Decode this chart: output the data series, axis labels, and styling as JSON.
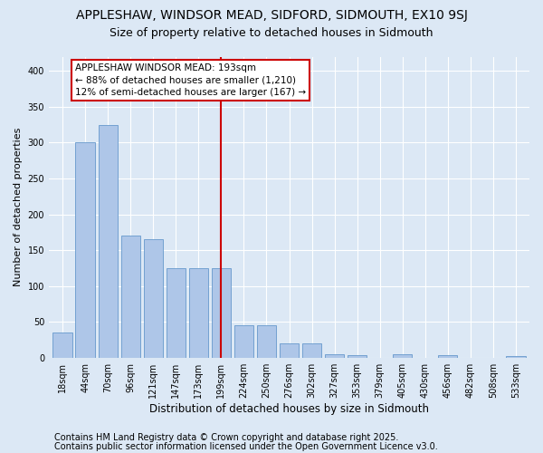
{
  "title_line1": "APPLESHAW, WINDSOR MEAD, SIDFORD, SIDMOUTH, EX10 9SJ",
  "title_line2": "Size of property relative to detached houses in Sidmouth",
  "xlabel": "Distribution of detached houses by size in Sidmouth",
  "ylabel": "Number of detached properties",
  "categories": [
    "18sqm",
    "44sqm",
    "70sqm",
    "96sqm",
    "121sqm",
    "147sqm",
    "173sqm",
    "199sqm",
    "224sqm",
    "250sqm",
    "276sqm",
    "302sqm",
    "327sqm",
    "353sqm",
    "379sqm",
    "405sqm",
    "430sqm",
    "456sqm",
    "482sqm",
    "508sqm",
    "533sqm"
  ],
  "values": [
    35,
    300,
    325,
    170,
    165,
    125,
    125,
    125,
    45,
    45,
    20,
    20,
    5,
    3,
    0,
    5,
    0,
    3,
    0,
    0,
    2
  ],
  "bar_color": "#aec6e8",
  "bar_edge_color": "#6699cc",
  "vline_x_index": 7,
  "vline_color": "#cc0000",
  "annotation_text": "APPLESHAW WINDSOR MEAD: 193sqm\n← 88% of detached houses are smaller (1,210)\n12% of semi-detached houses are larger (167) →",
  "annotation_box_color": "#ffffff",
  "annotation_box_edge": "#cc0000",
  "ylim": [
    0,
    420
  ],
  "yticks": [
    0,
    50,
    100,
    150,
    200,
    250,
    300,
    350,
    400
  ],
  "background_color": "#dce8f5",
  "footer_line1": "Contains HM Land Registry data © Crown copyright and database right 2025.",
  "footer_line2": "Contains public sector information licensed under the Open Government Licence v3.0.",
  "footer_fontsize": 7,
  "title1_fontsize": 10,
  "title2_fontsize": 9,
  "annot_fontsize": 7.5,
  "xlabel_fontsize": 8.5,
  "ylabel_fontsize": 8,
  "tick_fontsize": 7
}
